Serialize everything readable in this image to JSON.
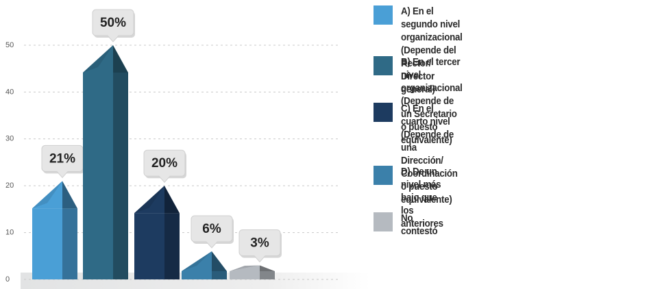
{
  "chart_data": {
    "type": "bar",
    "categories": [
      "A) En el segundo nivel organizacional\n(Depende del Rector/ Director general)",
      "B) En el tercer nivel organizacional\n(Depende de un Secretario o puesto equivalente)",
      "C) En el cuarto nivel\n(Depende de una Dirección/ Coordinación\no puesto equivalente)",
      "D) De un nivel más bajo que los anteriores",
      "No contestó"
    ],
    "values": [
      21,
      50,
      20,
      6,
      3
    ],
    "value_labels": [
      "21%",
      "50%",
      "20%",
      "6%",
      "3%"
    ],
    "colors": [
      "#4a9fd6",
      "#2f6a86",
      "#1d3b60",
      "#3b80aa",
      "#b5bac0"
    ],
    "ylim": [
      0,
      50
    ],
    "yticks": [
      0,
      10,
      20,
      30,
      40,
      50
    ],
    "grid": true
  }
}
